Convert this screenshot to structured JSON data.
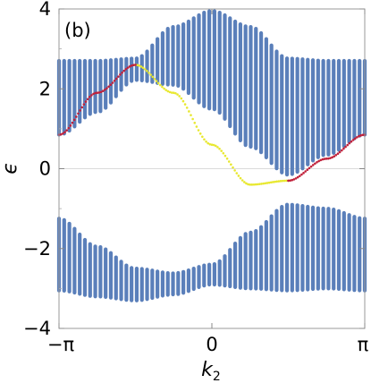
{
  "chart_data": {
    "type": "scatter",
    "panel_label": "(b)",
    "xlabel_main": "k",
    "xlabel_sub": "2",
    "ylabel": "ϵ",
    "xlim": [
      -3.14159,
      3.14159
    ],
    "ylim": [
      -4,
      4
    ],
    "x_ticks": [
      {
        "value": -3.14159,
        "label": "−π"
      },
      {
        "value": 0,
        "label": "0"
      },
      {
        "value": 3.14159,
        "label": "π"
      }
    ],
    "y_ticks": [
      {
        "value": 4,
        "label": "4"
      },
      {
        "value": 2,
        "label": "2"
      },
      {
        "value": 0,
        "label": "0"
      },
      {
        "value": -2,
        "label": "−2"
      },
      {
        "value": -4,
        "label": "−4"
      }
    ],
    "zero_line": true,
    "num_k_samples": 60,
    "series": [
      {
        "role": "bulk-band-upper",
        "color": "#5a7fba",
        "x": [
          -3.14,
          -2.36,
          -1.57,
          -0.79,
          0,
          0.79,
          1.57,
          2.36,
          3.14
        ],
        "y_min": [
          0.85,
          1.42,
          2.22,
          2.1,
          1.5,
          0.55,
          -0.15,
          0.35,
          0.85
        ],
        "y_max": [
          2.7,
          2.7,
          2.76,
          3.55,
          3.95,
          3.55,
          2.76,
          2.7,
          2.7
        ]
      },
      {
        "role": "bulk-band-lower",
        "color": "#5a7fba",
        "x": [
          -3.14,
          -2.36,
          -1.57,
          -0.79,
          0,
          0.79,
          1.57,
          2.36,
          3.14
        ],
        "y_min": [
          -3.05,
          -3.2,
          -3.3,
          -3.15,
          -2.9,
          -3.0,
          -3.05,
          -3.0,
          -3.05
        ],
        "y_max": [
          -1.25,
          -1.95,
          -2.5,
          -2.62,
          -2.4,
          -1.6,
          -0.9,
          -1.0,
          -1.25
        ]
      },
      {
        "role": "edge-state",
        "color": "#e8e830",
        "x": [
          -1.57,
          -0.79,
          0,
          0.79,
          1.57
        ],
        "y": [
          2.6,
          1.9,
          0.6,
          -0.4,
          -0.3
        ]
      },
      {
        "role": "edge-state",
        "color": "#c0203a",
        "x": [
          -3.14,
          -2.36,
          -1.57,
          1.57,
          2.36,
          3.14
        ],
        "y": [
          0.85,
          1.9,
          2.6,
          -0.3,
          0.25,
          0.85
        ]
      }
    ]
  }
}
